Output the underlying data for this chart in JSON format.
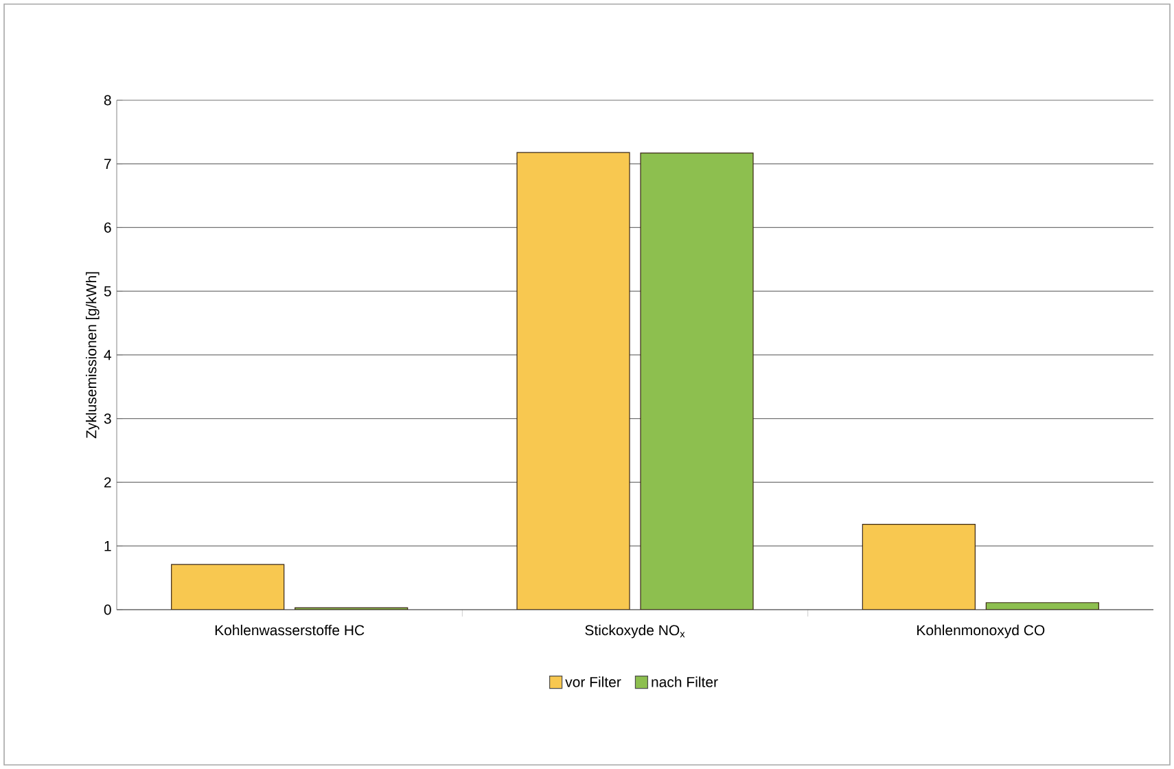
{
  "chart_data": {
    "type": "bar",
    "ylabel": "Zyklusemissionen [g/kWh]",
    "categories": [
      "Kohlenwasserstoffe HC",
      "Stickoxyde NO$_{x}$",
      "Kohlenmonoxyd CO"
    ],
    "series": [
      {
        "name": "vor Filter",
        "color": "#f8c850",
        "values": [
          0.71,
          7.18,
          1.34
        ]
      },
      {
        "name": "nach Filter",
        "color": "#8dbf4f",
        "values": [
          0.03,
          7.17,
          0.11
        ]
      }
    ],
    "ylim": [
      0,
      8
    ],
    "yticks": [
      0,
      1,
      2,
      3,
      4,
      5,
      6,
      7,
      8
    ],
    "grid": "y",
    "legend": "bottom"
  }
}
